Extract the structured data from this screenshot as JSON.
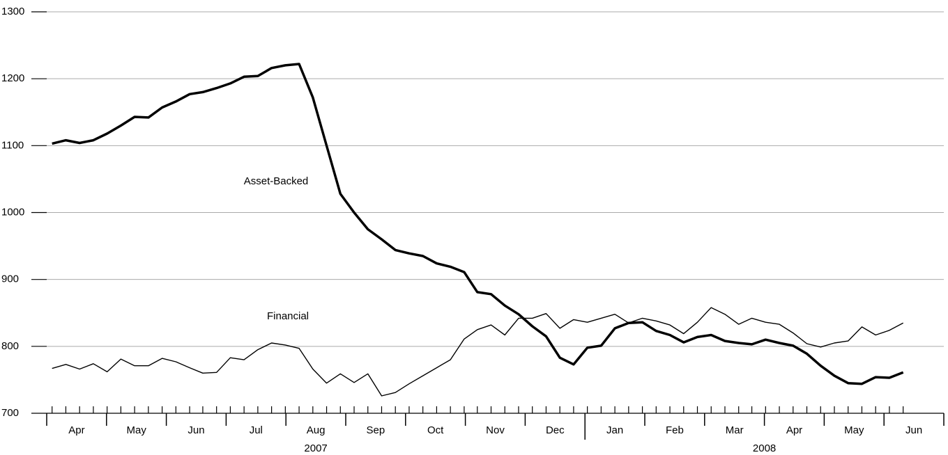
{
  "chart_data": {
    "type": "line",
    "x": [
      0.09,
      0.32,
      0.55,
      0.78,
      1.01,
      1.24,
      1.47,
      1.7,
      1.93,
      2.16,
      2.39,
      2.61,
      2.84,
      3.07,
      3.3,
      3.53,
      3.76,
      3.99,
      4.22,
      4.45,
      4.68,
      4.91,
      5.14,
      5.37,
      5.6,
      5.83,
      6.06,
      6.29,
      6.52,
      6.75,
      6.98,
      7.2,
      7.43,
      7.66,
      7.89,
      8.12,
      8.35,
      8.58,
      8.81,
      9.04,
      9.27,
      9.5,
      9.73,
      9.96,
      10.19,
      10.42,
      10.65,
      10.88,
      11.11,
      11.34,
      11.57,
      11.79,
      12.02,
      12.25,
      12.48,
      12.71,
      12.94,
      13.17,
      13.4,
      13.63,
      13.86,
      14.09,
      14.32
    ],
    "series": [
      {
        "name": "Asset-Backed",
        "color": "#000000",
        "values": [
          1103,
          1108,
          1104,
          1108,
          1118,
          1130,
          1143,
          1142,
          1157,
          1166,
          1177,
          1180,
          1186,
          1193,
          1203,
          1204,
          1216,
          1220,
          1222,
          1172,
          1100,
          1028,
          1000,
          975,
          960,
          944,
          939,
          935,
          924,
          919,
          911,
          881,
          878,
          861,
          848,
          830,
          815,
          783,
          773,
          798,
          801,
          827,
          835,
          836,
          823,
          817,
          806,
          814,
          817,
          808,
          805,
          803,
          810,
          805,
          801,
          789,
          771,
          756,
          745,
          744,
          754,
          753,
          761
        ]
      },
      {
        "name": "Financial",
        "color": "#000000",
        "values": [
          767,
          773,
          766,
          774,
          762,
          781,
          771,
          771,
          782,
          777,
          768,
          760,
          761,
          783,
          780,
          795,
          805,
          802,
          797,
          766,
          745,
          759,
          746,
          759,
          726,
          731,
          744,
          756,
          768,
          780,
          811,
          825,
          832,
          817,
          842,
          842,
          849,
          827,
          840,
          836,
          842,
          848,
          835,
          842,
          838,
          832,
          819,
          836,
          858,
          848,
          833,
          842,
          836,
          833,
          820,
          804,
          799,
          805,
          808,
          829,
          817,
          824,
          835
        ]
      }
    ],
    "xlim": [
      0,
      15
    ],
    "xticks": [
      {
        "value": 0.5,
        "label": "Apr"
      },
      {
        "value": 1.5,
        "label": "May"
      },
      {
        "value": 2.5,
        "label": "Jun"
      },
      {
        "value": 3.5,
        "label": "Jul"
      },
      {
        "value": 4.5,
        "label": "Aug"
      },
      {
        "value": 5.5,
        "label": "Sep"
      },
      {
        "value": 6.5,
        "label": "Oct"
      },
      {
        "value": 7.5,
        "label": "Nov"
      },
      {
        "value": 8.5,
        "label": "Dec"
      },
      {
        "value": 9.5,
        "label": "Jan"
      },
      {
        "value": 10.5,
        "label": "Feb"
      },
      {
        "value": 11.5,
        "label": "Mar"
      },
      {
        "value": 12.5,
        "label": "Apr"
      },
      {
        "value": 13.5,
        "label": "May"
      },
      {
        "value": 14.5,
        "label": "Jun"
      }
    ],
    "year_labels": [
      {
        "value": 4.5,
        "label": "2007"
      },
      {
        "value": 12,
        "label": "2008"
      }
    ],
    "ylim": [
      700,
      1300
    ],
    "yticks": [
      700,
      800,
      900,
      1000,
      1100,
      1200,
      1300
    ],
    "grid": true
  }
}
